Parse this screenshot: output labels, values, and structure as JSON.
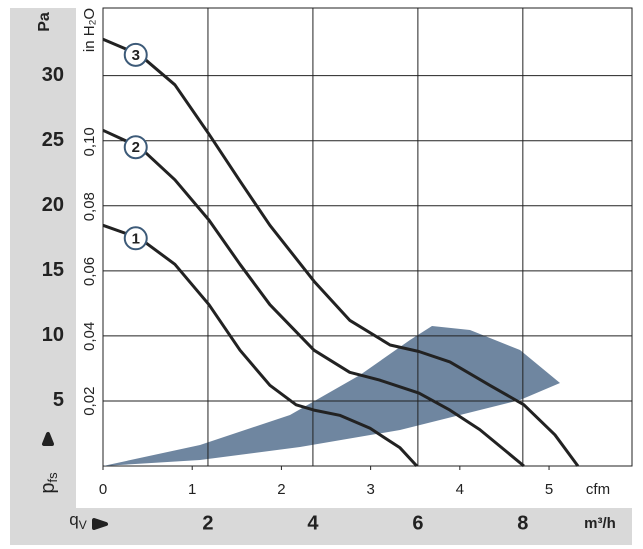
{
  "chart_data": {
    "type": "line",
    "y_unit": "Pa",
    "y2_unit": "in H₂O",
    "x_unit": "m³/h",
    "x2_unit": "cfm",
    "y_label": {
      "symbol": "p",
      "subscript": "fs"
    },
    "x_label": {
      "symbol": "q",
      "subscript": "V"
    },
    "xlim": [
      0,
      10.08
    ],
    "xticks": [
      2,
      4,
      6,
      8
    ],
    "x2lim": [
      0,
      5.93
    ],
    "x2ticks": [
      0,
      1,
      2,
      3,
      4,
      5
    ],
    "ylim": [
      0,
      35.2
    ],
    "yticks": [
      5,
      10,
      15,
      20,
      25,
      30
    ],
    "y2lim": [
      0,
      0.1413
    ],
    "y2ticks": [
      {
        "value": 0.02,
        "label": "0,02"
      },
      {
        "value": 0.04,
        "label": "0,04"
      },
      {
        "value": 0.06,
        "label": "0,06"
      },
      {
        "value": 0.08,
        "label": "0,08"
      },
      {
        "value": 0.1,
        "label": "0,10"
      }
    ],
    "grid": true,
    "series": [
      {
        "name": "1",
        "color": "#222222",
        "x": [
          0,
          0.7,
          1.37,
          2.02,
          2.61,
          3.18,
          3.68,
          4.02,
          4.51,
          5.09,
          5.66,
          5.98
        ],
        "values": [
          18.5,
          17.5,
          15.5,
          12.4,
          8.9,
          6.2,
          4.7,
          4.3,
          3.9,
          2.9,
          1.4,
          0
        ]
      },
      {
        "name": "2",
        "color": "#222222",
        "x": [
          0,
          0.7,
          1.37,
          2.02,
          2.61,
          3.18,
          4.02,
          4.7,
          5.27,
          6.02,
          6.61,
          7.18,
          7.66,
          8.02
        ],
        "values": [
          25.8,
          24.5,
          22.0,
          18.9,
          15.5,
          12.4,
          8.9,
          7.2,
          6.6,
          5.6,
          4.3,
          2.8,
          1.2,
          0
        ]
      },
      {
        "name": "3",
        "color": "#222222",
        "x": [
          0,
          0.7,
          1.37,
          2.02,
          2.61,
          3.18,
          4.02,
          4.7,
          5.47,
          6.02,
          6.61,
          7.37,
          8.02,
          8.61,
          9.05
        ],
        "values": [
          32.8,
          31.6,
          29.3,
          25.5,
          21.9,
          18.5,
          14.2,
          11.2,
          9.3,
          8.8,
          8.0,
          6.2,
          4.7,
          2.4,
          0
        ]
      }
    ]
  }
}
